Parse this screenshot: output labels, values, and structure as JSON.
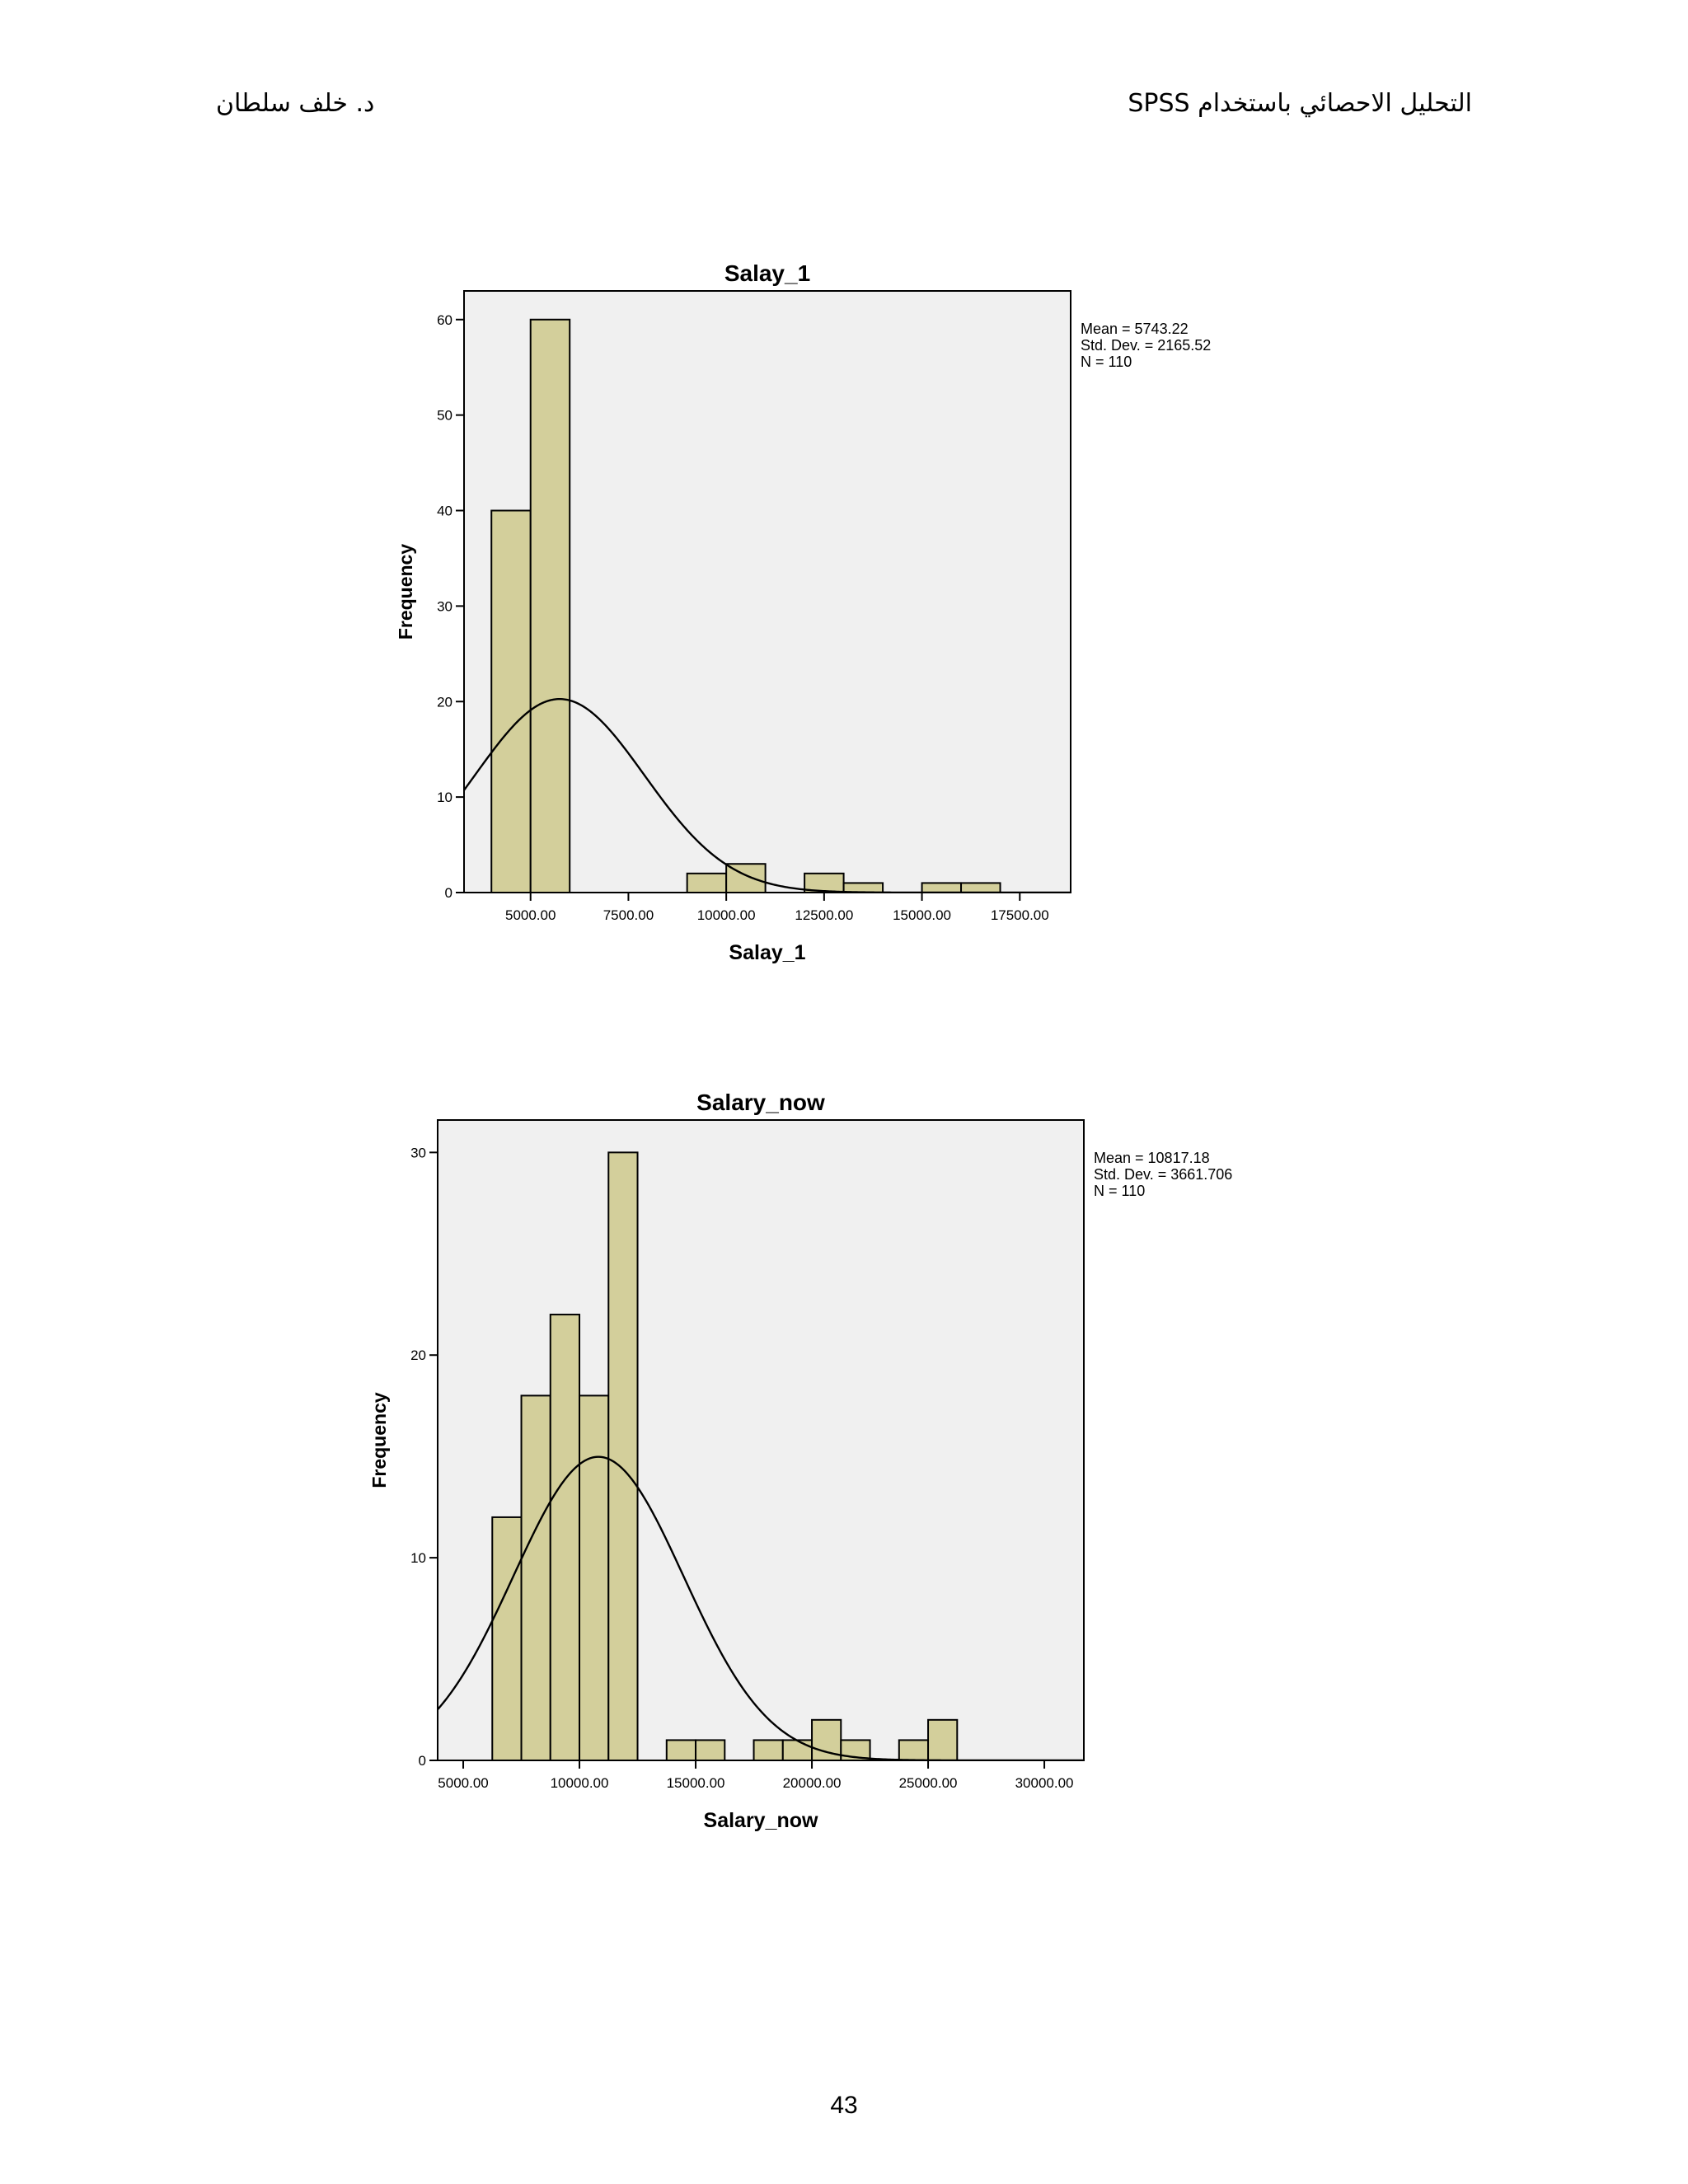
{
  "header": {
    "right": "التحليل الاحصائي باستخدام SPSS",
    "left": "د. خلف سلطان"
  },
  "page_number": "43",
  "chart_data": [
    {
      "type": "bar",
      "title": "Salay_1",
      "xlabel": "Salay_1",
      "ylabel": "Frequency",
      "xlim": [
        3300,
        18800
      ],
      "ylim": [
        0,
        63
      ],
      "x_ticks": [
        5000,
        7500,
        10000,
        12500,
        15000,
        17500
      ],
      "x_tick_labels": [
        "5000.00",
        "7500.00",
        "10000.00",
        "12500.00",
        "15000.00",
        "17500.00"
      ],
      "y_ticks": [
        0,
        10,
        20,
        30,
        40,
        50,
        60
      ],
      "y_tick_labels": [
        "0",
        "10",
        "20",
        "30",
        "40",
        "50",
        "60"
      ],
      "bin_width": 1000,
      "bins": [
        {
          "start": 4000,
          "count": 40
        },
        {
          "start": 5000,
          "count": 60
        },
        {
          "start": 6000,
          "count": 0
        },
        {
          "start": 7000,
          "count": 0
        },
        {
          "start": 8000,
          "count": 0
        },
        {
          "start": 9000,
          "count": 2
        },
        {
          "start": 10000,
          "count": 3
        },
        {
          "start": 11000,
          "count": 0
        },
        {
          "start": 12000,
          "count": 2
        },
        {
          "start": 13000,
          "count": 1
        },
        {
          "start": 14000,
          "count": 0
        },
        {
          "start": 15000,
          "count": 1
        },
        {
          "start": 16000,
          "count": 1
        },
        {
          "start": 17000,
          "count": 0
        }
      ],
      "normal_curve": {
        "mean": 5743.22,
        "std": 2165.52,
        "n": 110
      },
      "stats": [
        "Mean = 5743.22",
        "Std. Dev. = 2165.52",
        "N = 110"
      ],
      "legend_position": "right",
      "grid": false,
      "colors": {
        "bar": "#d3cf9b",
        "plot_bg": "#f0f0f0",
        "curve": "#000000"
      }
    },
    {
      "type": "bar",
      "title": "Salary_now",
      "xlabel": "Salary_now",
      "ylabel": "Frequency",
      "xlim": [
        3900,
        31700
      ],
      "ylim": [
        0,
        31.6
      ],
      "x_ticks": [
        5000,
        10000,
        15000,
        20000,
        25000,
        30000
      ],
      "x_tick_labels": [
        "5000.00",
        "10000.00",
        "15000.00",
        "20000.00",
        "25000.00",
        "30000.00"
      ],
      "y_ticks": [
        0,
        10,
        20,
        30
      ],
      "y_tick_labels": [
        "0",
        "10",
        "20",
        "30"
      ],
      "bin_width": 1250,
      "bins": [
        {
          "start": 6250,
          "count": 12
        },
        {
          "start": 7500,
          "count": 18
        },
        {
          "start": 8750,
          "count": 22
        },
        {
          "start": 10000,
          "count": 18
        },
        {
          "start": 11250,
          "count": 30
        },
        {
          "start": 12500,
          "count": 0
        },
        {
          "start": 13750,
          "count": 1
        },
        {
          "start": 15000,
          "count": 1
        },
        {
          "start": 16250,
          "count": 0
        },
        {
          "start": 17500,
          "count": 1
        },
        {
          "start": 18750,
          "count": 1
        },
        {
          "start": 20000,
          "count": 2
        },
        {
          "start": 21250,
          "count": 1
        },
        {
          "start": 22500,
          "count": 0
        },
        {
          "start": 23750,
          "count": 1
        },
        {
          "start": 25000,
          "count": 2
        }
      ],
      "normal_curve": {
        "mean": 10817.18,
        "std": 3661.706,
        "n": 110
      },
      "stats": [
        "Mean = 10817.18",
        "Std. Dev. = 3661.706",
        "N = 110"
      ],
      "legend_position": "right",
      "grid": false,
      "colors": {
        "bar": "#d3cf9b",
        "plot_bg": "#f0f0f0",
        "curve": "#000000"
      }
    }
  ]
}
